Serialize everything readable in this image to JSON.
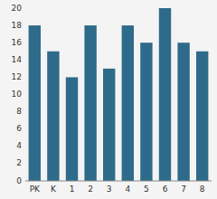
{
  "chart_data": {
    "type": "bar",
    "categories": [
      "PK",
      "K",
      "1",
      "2",
      "3",
      "4",
      "5",
      "6",
      "7",
      "8"
    ],
    "values": [
      18,
      15,
      12,
      18,
      13,
      18,
      16,
      20,
      16,
      15
    ],
    "color": "#2e6b8a",
    "ylim": [
      0,
      20
    ],
    "yticks": [
      0,
      2,
      4,
      6,
      8,
      10,
      12,
      14,
      16,
      18,
      20
    ],
    "grid": false
  }
}
